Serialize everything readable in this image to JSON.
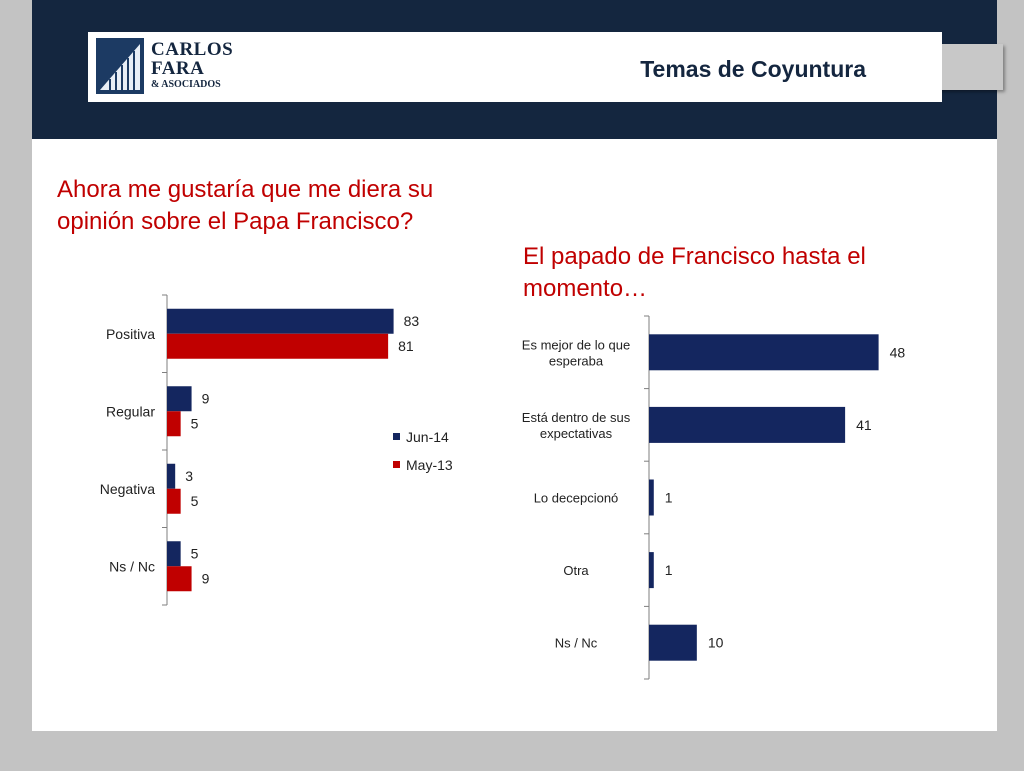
{
  "header": {
    "title": "Temas de Coyuntura",
    "logo": {
      "line1": "CARLOS",
      "line2": "FARA",
      "line3": "& ASOCIADOS"
    }
  },
  "questions": {
    "left": "Ahora me gustaría que me diera su opinión sobre el Papa Francisco?",
    "right": "El papado de Francisco hasta el momento…"
  },
  "colors": {
    "navy": "#14265f",
    "red": "#c00000",
    "header_band": "#14263f"
  },
  "chart_data": [
    {
      "type": "bar",
      "orientation": "horizontal",
      "title": "",
      "categories": [
        "Positiva",
        "Regular",
        "Negativa",
        "Ns / Nc"
      ],
      "series": [
        {
          "name": "Jun-14",
          "color": "#14265f",
          "values": [
            83,
            9,
            3,
            5
          ]
        },
        {
          "name": "May-13",
          "color": "#c00000",
          "values": [
            81,
            5,
            5,
            9
          ]
        }
      ],
      "xlim": [
        0,
        100
      ],
      "legend": "right",
      "data_labels": true,
      "grid": false
    },
    {
      "type": "bar",
      "orientation": "horizontal",
      "title": "",
      "categories": [
        "Es mejor de lo que esperaba",
        "Está dentro de sus expectativas",
        "Lo decepcionó",
        "Otra",
        "Ns / Nc"
      ],
      "series": [
        {
          "color": "#14265f",
          "values": [
            48,
            41,
            1,
            1,
            10
          ]
        }
      ],
      "xlim": [
        0,
        60
      ],
      "legend": "none",
      "data_labels": true,
      "grid": false
    }
  ]
}
